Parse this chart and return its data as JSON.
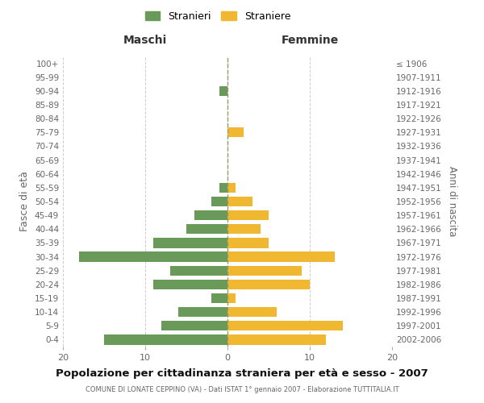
{
  "age_groups": [
    "0-4",
    "5-9",
    "10-14",
    "15-19",
    "20-24",
    "25-29",
    "30-34",
    "35-39",
    "40-44",
    "45-49",
    "50-54",
    "55-59",
    "60-64",
    "65-69",
    "70-74",
    "75-79",
    "80-84",
    "85-89",
    "90-94",
    "95-99",
    "100+"
  ],
  "birth_years": [
    "2002-2006",
    "1997-2001",
    "1992-1996",
    "1987-1991",
    "1982-1986",
    "1977-1981",
    "1972-1976",
    "1967-1971",
    "1962-1966",
    "1957-1961",
    "1952-1956",
    "1947-1951",
    "1942-1946",
    "1937-1941",
    "1932-1936",
    "1927-1931",
    "1922-1926",
    "1917-1921",
    "1912-1916",
    "1907-1911",
    "≤ 1906"
  ],
  "maschi": [
    15,
    8,
    6,
    2,
    9,
    7,
    18,
    9,
    5,
    4,
    2,
    1,
    0,
    0,
    0,
    0,
    0,
    0,
    1,
    0,
    0
  ],
  "femmine": [
    12,
    14,
    6,
    1,
    10,
    9,
    13,
    5,
    4,
    5,
    3,
    1,
    0,
    0,
    0,
    2,
    0,
    0,
    0,
    0,
    0
  ],
  "maschi_color": "#6a9a5a",
  "femmine_color": "#f0b830",
  "background_color": "#ffffff",
  "grid_color": "#cccccc",
  "title": "Popolazione per cittadinanza straniera per età e sesso - 2007",
  "subtitle": "COMUNE DI LONATE CEPPINO (VA) - Dati ISTAT 1° gennaio 2007 - Elaborazione TUTTITALIA.IT",
  "xlabel_left": "Maschi",
  "xlabel_right": "Femmine",
  "ylabel_left": "Fasce di età",
  "ylabel_right": "Anni di nascita",
  "xlim": 20,
  "legend_stranieri": "Stranieri",
  "legend_straniere": "Straniere"
}
